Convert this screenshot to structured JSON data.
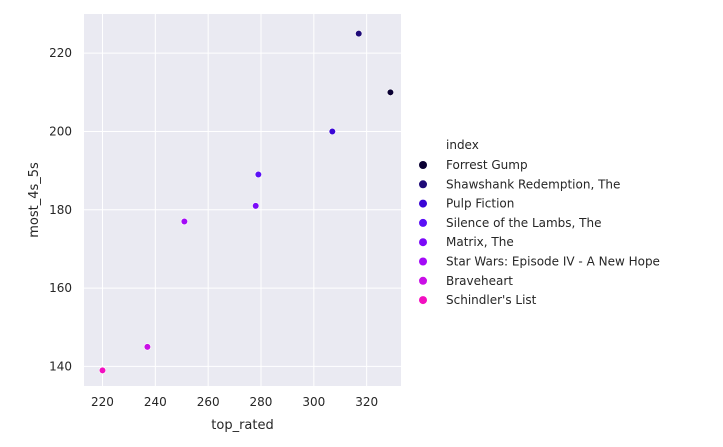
{
  "chart_data": {
    "type": "scatter",
    "xlabel": "top_rated",
    "ylabel": "most_4s_5s",
    "xlim": [
      213,
      333
    ],
    "ylim": [
      135,
      230
    ],
    "xticks": [
      220,
      240,
      260,
      280,
      300,
      320
    ],
    "yticks": [
      140,
      160,
      180,
      200,
      220
    ],
    "grid": true,
    "background_color": "#eaeaf2",
    "legend_title": "index",
    "legend_position": "right",
    "series": [
      {
        "name": "Forrest Gump",
        "color": "#0a0033",
        "x": 329,
        "y": 210
      },
      {
        "name": "Shawshank Redemption, The",
        "color": "#1f0a78",
        "x": 317,
        "y": 225
      },
      {
        "name": "Pulp Fiction",
        "color": "#3a06d6",
        "x": 307,
        "y": 200
      },
      {
        "name": "Silence of the Lambs, The",
        "color": "#5a10f6",
        "x": 279,
        "y": 189
      },
      {
        "name": "Matrix, The",
        "color": "#7a0af8",
        "x": 278,
        "y": 181
      },
      {
        "name": "Star Wars: Episode IV - A New Hope",
        "color": "#a30af7",
        "x": 251,
        "y": 177
      },
      {
        "name": "Braveheart",
        "color": "#c90fe6",
        "x": 237,
        "y": 145
      },
      {
        "name": "Schindler's List",
        "color": "#f20fc0",
        "x": 220,
        "y": 139
      }
    ]
  }
}
